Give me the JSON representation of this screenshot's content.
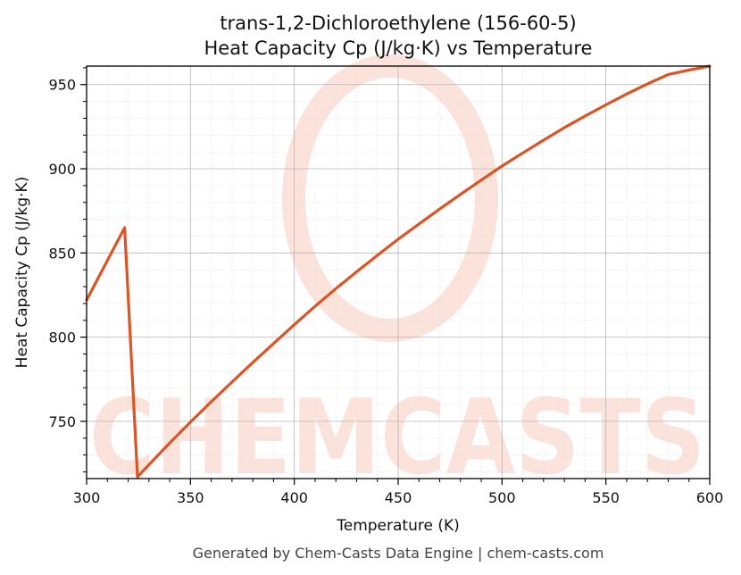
{
  "chart_data": {
    "type": "line",
    "title": "trans-1,2-Dichloroethylene (156-60-5)",
    "subtitle": "Heat Capacity Cp (J/kg·K) vs Temperature",
    "xlabel": "Temperature (K)",
    "ylabel": "Heat Capacity Cp (J/kg·K)",
    "xlim": [
      300,
      600
    ],
    "ylim": [
      716,
      961
    ],
    "xticks": [
      300,
      350,
      400,
      450,
      500,
      550,
      600
    ],
    "yticks": [
      750,
      800,
      850,
      900,
      950
    ],
    "grid": true,
    "series": [
      {
        "color": "#d95525",
        "points": [
          [
            300,
            822
          ],
          [
            318.3,
            865
          ],
          [
            324.5,
            717
          ],
          [
            330,
            724.2
          ],
          [
            340,
            737.1
          ],
          [
            350,
            749.5
          ],
          [
            360,
            761.6
          ],
          [
            370,
            773.4
          ],
          [
            380,
            784.9
          ],
          [
            390,
            796.2
          ],
          [
            400,
            807.4
          ],
          [
            410,
            818.3
          ],
          [
            420,
            828.8
          ],
          [
            430,
            838.8
          ],
          [
            440,
            848.6
          ],
          [
            450,
            858.2
          ],
          [
            460,
            867.2
          ],
          [
            470,
            876.1
          ],
          [
            480,
            884.8
          ],
          [
            490,
            893.3
          ],
          [
            500,
            901.6
          ],
          [
            510,
            909.4
          ],
          [
            520,
            917.0
          ],
          [
            530,
            924.4
          ],
          [
            540,
            931.3
          ],
          [
            550,
            938.0
          ],
          [
            560,
            944.4
          ],
          [
            570,
            950.4
          ],
          [
            580,
            956.0
          ],
          [
            590,
            958.6
          ],
          [
            600,
            961.0
          ]
        ]
      }
    ]
  },
  "watermark": {
    "text": "CHEMCASTS",
    "color": "#fbe3dc"
  },
  "footer": "Generated by Chem-Casts Data Engine | chem-casts.com"
}
